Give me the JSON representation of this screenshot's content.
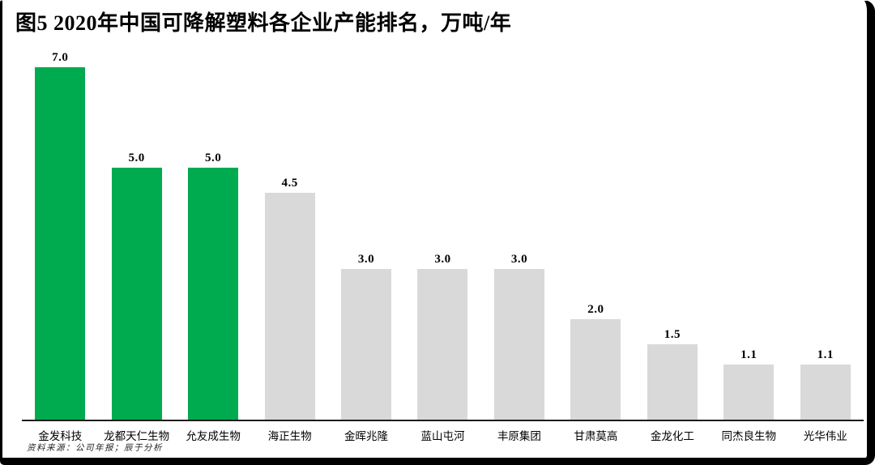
{
  "title": "图5 2020年中国可降解塑料各企业产能排名，万吨/年",
  "source_note": "资料来源：公司年报；辰于分析",
  "colors": {
    "highlight_bar": "#00AB50",
    "default_bar": "#D9D9D9",
    "axis": "#1C1C1C"
  },
  "chart_data": {
    "type": "bar",
    "title": "图5 2020年中国可降解塑料各企业产能排名，万吨/年",
    "unit": "万吨/年",
    "categories": [
      "金发科技",
      "龙都天仁生物",
      "允友成生物",
      "海正生物",
      "金晖兆隆",
      "蓝山屯河",
      "丰原集团",
      "甘肃莫高",
      "金龙化工",
      "同杰良生物",
      "光华伟业"
    ],
    "values": [
      7.0,
      5.0,
      5.0,
      4.5,
      3.0,
      3.0,
      3.0,
      2.0,
      1.5,
      1.1,
      1.1
    ],
    "value_labels": [
      "7.0",
      "5.0",
      "5.0",
      "4.5",
      "3.0",
      "3.0",
      "3.0",
      "2.0",
      "1.5",
      "1.1",
      "1.1"
    ],
    "bar_colors": [
      "highlight",
      "highlight",
      "highlight",
      "default",
      "default",
      "default",
      "default",
      "default",
      "default",
      "default",
      "default"
    ],
    "xlabel": "",
    "ylabel": "",
    "ylim": [
      0,
      7
    ],
    "grid": false,
    "legend": "none",
    "data_labels": true
  }
}
